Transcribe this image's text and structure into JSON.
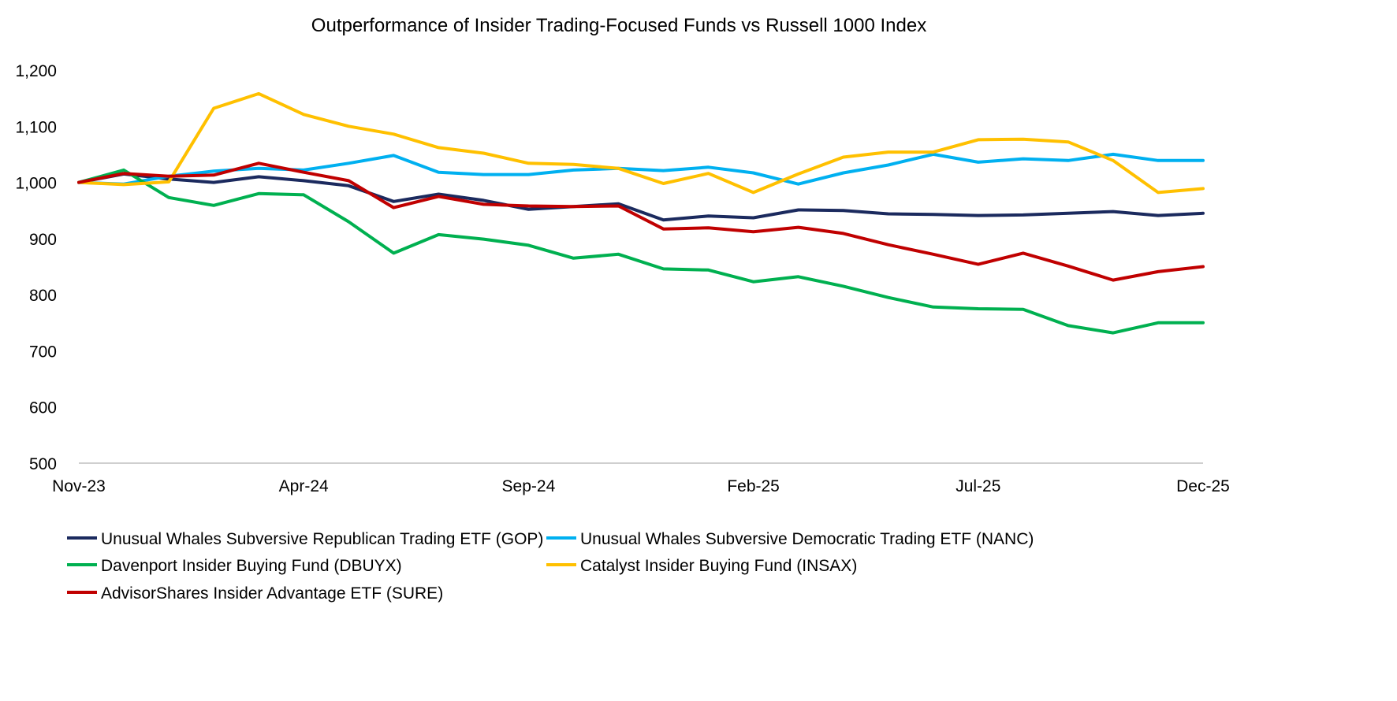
{
  "chart_data": {
    "type": "line",
    "title": "Outperformance of Insider Trading-Focused Funds vs Russell 1000 Index",
    "xlabel": "",
    "ylabel": "",
    "ylim": [
      500,
      1200
    ],
    "yticks": [
      "500",
      "600",
      "700",
      "800",
      "900",
      "1,000",
      "1,100",
      "1,200"
    ],
    "ytick_values": [
      500,
      600,
      700,
      800,
      900,
      1000,
      1100,
      1200
    ],
    "xticks": [
      "Nov-23",
      "Apr-24",
      "Sep-24",
      "Feb-25",
      "Jul-25",
      "Dec-25"
    ],
    "xtick_index": [
      0,
      5,
      10,
      15,
      20,
      25
    ],
    "x": [
      "Nov-23",
      "Dec-23",
      "Jan-24",
      "Feb-24",
      "Mar-24",
      "Apr-24",
      "May-24",
      "Jun-24",
      "Jul-24",
      "Aug-24",
      "Sep-24",
      "Oct-24",
      "Nov-24",
      "Dec-24",
      "Jan-25",
      "Feb-25",
      "Mar-25",
      "Apr-25",
      "May-25",
      "Jun-25",
      "Jul-25",
      "Aug-25",
      "Sep-25",
      "Oct-25",
      "Nov-25",
      "Dec-25"
    ],
    "grid": false,
    "legend_placement": "bottom",
    "series": [
      {
        "name": "Unusual Whales Subversive Republican Trading ETF (GOP)",
        "color": "#1b2a5e",
        "values": [
          1000,
          1015,
          1006,
          1000,
          1010,
          1003,
          994,
          966,
          979,
          968,
          952,
          957,
          962,
          933,
          940,
          937,
          951,
          950,
          944,
          943,
          941,
          942,
          945,
          948,
          941,
          945
        ]
      },
      {
        "name": "Unusual Whales Subversive Democratic Trading ETF (NANC)",
        "color": "#00b0f0",
        "values": [
          1000,
          997,
          1011,
          1020,
          1025,
          1022,
          1034,
          1048,
          1018,
          1014,
          1014,
          1022,
          1025,
          1021,
          1027,
          1017,
          997,
          1017,
          1031,
          1050,
          1036,
          1042,
          1039,
          1050,
          1039,
          1039
        ]
      },
      {
        "name": "Davenport Insider Buying Fund (DBUYX)",
        "color": "#00b050",
        "values": [
          1000,
          1022,
          973,
          959,
          980,
          978,
          930,
          874,
          907,
          899,
          888,
          865,
          872,
          846,
          844,
          823,
          832,
          815,
          795,
          778,
          775,
          774,
          745,
          732,
          750,
          750
        ]
      },
      {
        "name": "Catalyst Insider Buying Fund (INSAX)",
        "color": "#ffc000",
        "values": [
          1000,
          996,
          1001,
          1132,
          1158,
          1121,
          1100,
          1086,
          1062,
          1052,
          1034,
          1032,
          1025,
          998,
          1016,
          982,
          1015,
          1045,
          1054,
          1054,
          1076,
          1077,
          1072,
          1039,
          982,
          989
        ]
      },
      {
        "name": "AdvisorShares Insider Advantage ETF (SURE)",
        "color": "#c00000",
        "values": [
          1000,
          1016,
          1011,
          1013,
          1034,
          1018,
          1003,
          955,
          975,
          961,
          958,
          957,
          958,
          917,
          919,
          912,
          920,
          909,
          889,
          872,
          854,
          874,
          851,
          826,
          841,
          850
        ]
      }
    ]
  }
}
